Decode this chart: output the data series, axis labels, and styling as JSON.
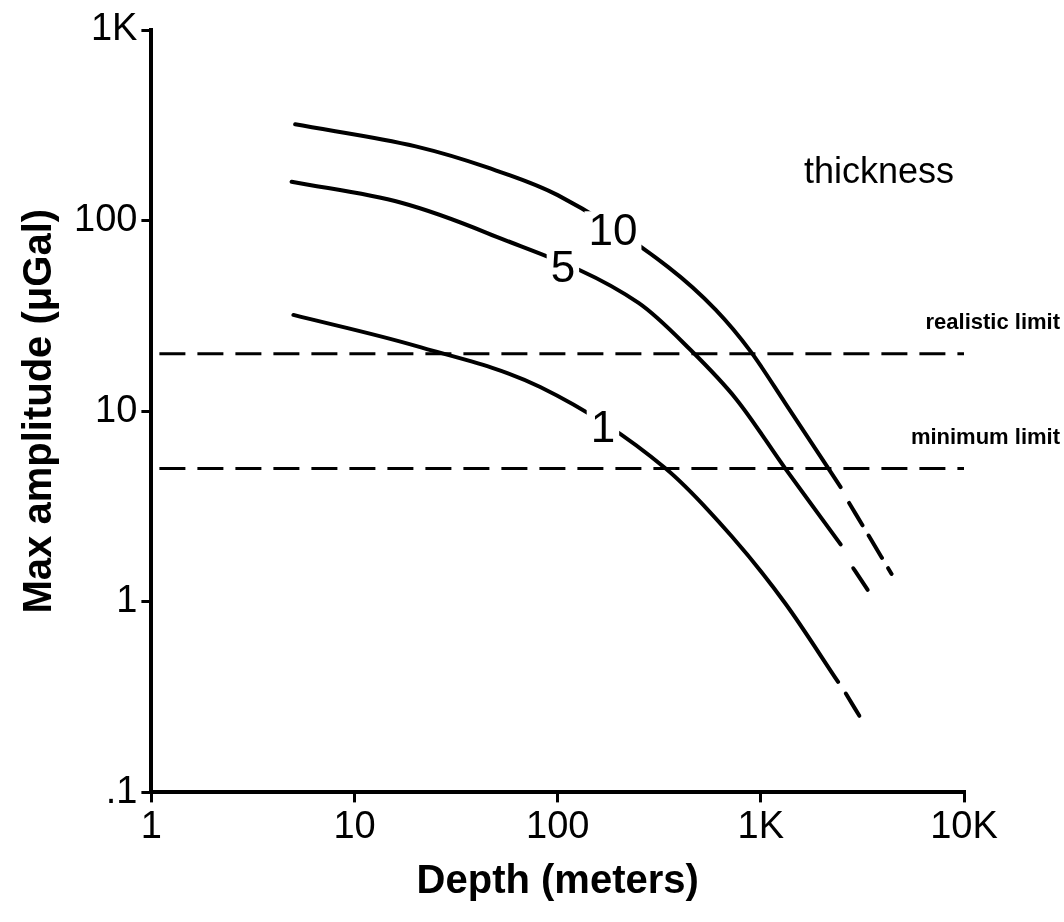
{
  "chart_data": {
    "type": "line",
    "xlabel": "Depth (meters)",
    "ylabel": "Max amplitude (μGal)",
    "legend_title": "thickness",
    "log": "xy",
    "grid": false,
    "legend": false,
    "marker": "none",
    "xlim": [
      1,
      10000
    ],
    "xticks": [
      1,
      10,
      100,
      {
        "value": 1000,
        "label": "1K"
      },
      {
        "value": 10000,
        "label": "10K"
      }
    ],
    "ylim": [
      0.1,
      1000
    ],
    "yticks": [
      {
        "value": 0.1,
        "label": ".1"
      },
      1,
      10,
      100,
      {
        "value": 1000,
        "label": "1K"
      }
    ],
    "series": [
      {
        "name": "10",
        "color": "#000000",
        "line_style": "solid",
        "x": [
          5.1,
          20,
          45,
          100,
          350,
          600,
          890,
          1320,
          2470
        ],
        "values": [
          320,
          245,
          190,
          136,
          57,
          34,
          20.6,
          11,
          4
        ]
      },
      {
        "name": "5",
        "color": "#000000",
        "line_style": "solid",
        "x": [
          4.9,
          17,
          45,
          250,
          450,
          760,
          1320,
          2470
        ],
        "values": [
          160,
          124,
          86,
          37,
          21,
          11.5,
          5,
          2
        ]
      },
      {
        "name": "1",
        "color": "#000000",
        "line_style": "solid",
        "x": [
          5,
          20,
          82,
          340,
          720,
          1320,
          2400
        ],
        "values": [
          32,
          22,
          13.4,
          5,
          2.2,
          0.98,
          0.38
        ]
      },
      {
        "color": "#000000",
        "line_style": "dashed",
        "x": [
          2720,
          4400
        ],
        "values": [
          3.3,
          1.4
        ]
      },
      {
        "color": "#000000",
        "line_style": "dashed",
        "x": [
          2850,
          3460
        ],
        "values": [
          1.5,
          1.1
        ]
      },
      {
        "color": "#000000",
        "line_style": "dashed",
        "x": [
          2620,
          3070
        ],
        "values": [
          0.33,
          0.25
        ]
      }
    ],
    "ref_lines": [
      {
        "axis": "y",
        "value": 20,
        "label": "realistic limit",
        "color": "#000000",
        "line_style": "dashed"
      },
      {
        "axis": "y",
        "value": 5,
        "label": "minimum limit",
        "color": "#000000",
        "line_style": "dashed"
      }
    ]
  }
}
